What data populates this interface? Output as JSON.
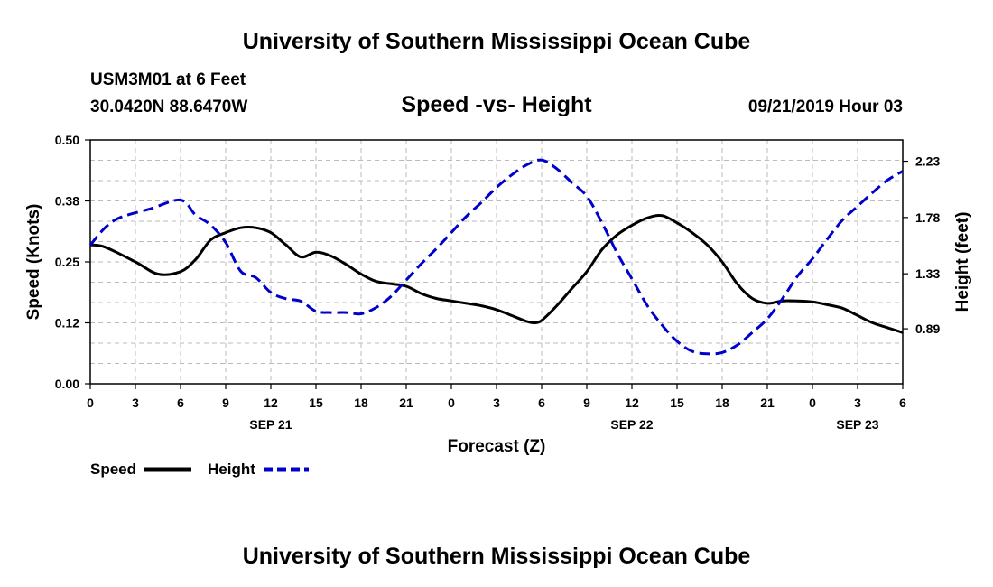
{
  "header": {
    "title": "University of Southern Mississippi Ocean Cube",
    "station": "USM3M01 at 6 Feet",
    "coords": "30.0420N 88.6470W",
    "subtitle": "Speed -vs- Height",
    "datetime": "09/21/2019 Hour 03"
  },
  "footer": {
    "title": "University of Southern Mississippi Ocean Cube"
  },
  "legend": {
    "speed_label": "Speed",
    "height_label": "Height"
  },
  "colors": {
    "speed": "#000000",
    "height": "#0000cc",
    "grid": "#bbbbbb"
  },
  "chart_data": {
    "type": "line",
    "title": "Speed -vs- Height",
    "xlabel": "Forecast (Z)",
    "ylabel": "Speed (Knots)",
    "y2label": "Height (feet)",
    "xlim": [
      0,
      54
    ],
    "ylim": [
      0,
      0.5
    ],
    "y2lim": [
      0.45,
      2.4
    ],
    "x_ticks": [
      0,
      3,
      6,
      9,
      12,
      15,
      18,
      21,
      24,
      27,
      30,
      33,
      36,
      39,
      42,
      45,
      48,
      51,
      54
    ],
    "x_tick_labels": [
      "0",
      "3",
      "6",
      "9",
      "12",
      "15",
      "18",
      "21",
      "0",
      "3",
      "6",
      "9",
      "12",
      "15",
      "18",
      "21",
      "0",
      "3",
      "6"
    ],
    "date_labels": [
      {
        "x": 12,
        "label": "SEP 21"
      },
      {
        "x": 36,
        "label": "SEP 22"
      },
      {
        "x": 51,
        "label": "SEP 23"
      }
    ],
    "y_ticks": [
      0.0,
      0.125,
      0.25,
      0.375,
      0.5
    ],
    "y_tick_labels": [
      "0.00",
      "0.12",
      "0.25",
      "0.38",
      "0.50"
    ],
    "y2_ticks": [
      0.89,
      1.33,
      1.78,
      2.23
    ],
    "y2_tick_labels": [
      "0.89",
      "1.33",
      "1.78",
      "2.23"
    ],
    "series": [
      {
        "name": "Speed",
        "axis": "left",
        "style": "solid",
        "x": [
          0,
          1,
          3,
          4.5,
          6,
          7,
          8,
          9,
          10,
          11,
          12,
          13,
          14,
          15,
          16,
          17,
          18,
          19,
          20,
          21,
          22,
          23,
          24,
          25,
          26,
          27,
          28,
          29,
          29.5,
          30,
          31,
          32,
          33,
          34,
          35,
          36,
          37,
          38,
          39,
          40,
          41,
          42,
          43,
          44,
          45,
          46,
          47,
          48,
          49,
          50,
          51,
          52,
          53,
          54
        ],
        "values": [
          0.285,
          0.28,
          0.25,
          0.225,
          0.23,
          0.255,
          0.295,
          0.31,
          0.32,
          0.32,
          0.31,
          0.285,
          0.26,
          0.27,
          0.262,
          0.245,
          0.225,
          0.21,
          0.205,
          0.2,
          0.185,
          0.175,
          0.17,
          0.165,
          0.16,
          0.152,
          0.14,
          0.128,
          0.125,
          0.13,
          0.16,
          0.195,
          0.23,
          0.275,
          0.305,
          0.325,
          0.34,
          0.345,
          0.33,
          0.31,
          0.285,
          0.25,
          0.205,
          0.175,
          0.165,
          0.17,
          0.17,
          0.168,
          0.162,
          0.155,
          0.14,
          0.125,
          0.115,
          0.105
        ]
      },
      {
        "name": "Height",
        "axis": "right",
        "style": "dashed",
        "x": [
          0,
          1,
          2,
          4,
          6,
          7,
          8,
          9,
          10,
          11,
          12,
          13,
          14,
          15,
          16,
          17,
          18,
          19,
          20,
          21,
          22,
          23,
          24,
          25,
          26,
          27,
          28,
          29,
          30,
          31,
          32,
          33,
          34,
          35,
          36,
          37,
          38,
          39,
          40,
          41,
          42,
          43,
          44,
          45,
          46,
          47,
          48,
          49,
          50,
          51,
          52,
          53,
          54
        ],
        "values": [
          1.56,
          1.7,
          1.78,
          1.85,
          1.92,
          1.8,
          1.72,
          1.58,
          1.35,
          1.3,
          1.18,
          1.13,
          1.11,
          1.03,
          1.02,
          1.02,
          1.01,
          1.06,
          1.15,
          1.28,
          1.41,
          1.53,
          1.66,
          1.79,
          1.9,
          2.02,
          2.12,
          2.2,
          2.24,
          2.17,
          2.06,
          1.95,
          1.74,
          1.5,
          1.29,
          1.08,
          0.92,
          0.79,
          0.71,
          0.69,
          0.7,
          0.76,
          0.86,
          0.97,
          1.13,
          1.31,
          1.45,
          1.61,
          1.76,
          1.87,
          1.98,
          2.08,
          2.15
        ]
      }
    ]
  }
}
